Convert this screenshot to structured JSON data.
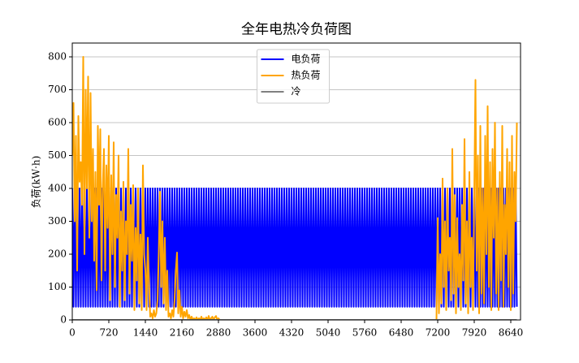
{
  "chart_data": {
    "type": "line",
    "title": "全年电热冷负荷图",
    "ylabel": "负荷(kW·h)",
    "x": [
      0,
      24,
      48,
      72,
      96,
      120,
      144,
      168,
      192,
      216,
      240,
      264,
      288,
      312,
      336,
      360,
      384,
      408,
      432,
      456,
      480,
      504,
      528,
      552,
      576,
      600,
      624,
      648,
      672,
      696,
      720,
      744,
      768,
      792,
      816,
      840,
      864,
      888,
      912,
      936,
      960,
      984,
      1008,
      1032,
      1056,
      1080,
      1104,
      1128,
      1152,
      1176,
      1200,
      1224,
      1248,
      1272,
      1296,
      1320,
      1344,
      1368,
      1392,
      1416,
      1440,
      1464,
      1488,
      1512,
      1536,
      1560,
      1584,
      1608,
      1632,
      1656,
      1680,
      1704,
      1728,
      1752,
      1776,
      1800,
      1824,
      1848,
      1872,
      1896,
      1920,
      1944,
      1968,
      1992,
      2016,
      2040,
      2064,
      2088,
      2112,
      2136,
      2160,
      2184,
      2208,
      2232,
      2256,
      2280,
      2304,
      2328,
      2352,
      2376,
      2400,
      2424,
      2448,
      2472,
      2496,
      2520,
      2544,
      2568,
      2592,
      2616,
      2640,
      2664,
      2688,
      2712,
      2736,
      2760,
      2784,
      2808,
      2832,
      2856,
      2880,
      2904,
      2928,
      2952,
      2976,
      3000,
      3024,
      3048,
      3072,
      3096,
      3120,
      3144,
      3168,
      3192,
      3216,
      3240,
      3264,
      3288,
      3312,
      3336,
      3360,
      3384,
      3408,
      3432,
      3456,
      3480,
      3504,
      3528,
      3552,
      3576,
      3600,
      3624,
      3648,
      3672,
      3696,
      3720,
      3744,
      3768,
      3792,
      3816,
      3840,
      3864,
      3888,
      3912,
      3936,
      3960,
      3984,
      4008,
      4032,
      4056,
      4080,
      4104,
      4128,
      4152,
      4176,
      4200,
      4224,
      4248,
      4272,
      4296,
      4320,
      4344,
      4368,
      4392,
      4416,
      4440,
      4464,
      4488,
      4512,
      4536,
      4560,
      4584,
      4608,
      4632,
      4656,
      4680,
      4704,
      4728,
      4752,
      4776,
      4800,
      4824,
      4848,
      4872,
      4896,
      4920,
      4944,
      4968,
      4992,
      5016,
      5040,
      5064,
      5088,
      5112,
      5136,
      5160,
      5184,
      5208,
      5232,
      5256,
      5280,
      5304,
      5328,
      5352,
      5376,
      5400,
      5424,
      5448,
      5472,
      5496,
      5520,
      5544,
      5568,
      5592,
      5616,
      5640,
      5664,
      5688,
      5712,
      5736,
      5760,
      5784,
      5808,
      5832,
      5856,
      5880,
      5904,
      5928,
      5952,
      5976,
      6000,
      6024,
      6048,
      6072,
      6096,
      6120,
      6144,
      6168,
      6192,
      6216,
      6240,
      6264,
      6288,
      6312,
      6336,
      6360,
      6384,
      6408,
      6432,
      6456,
      6480,
      6504,
      6528,
      6552,
      6576,
      6600,
      6624,
      6648,
      6672,
      6696,
      6720,
      6744,
      6768,
      6792,
      6816,
      6840,
      6864,
      6888,
      6912,
      6936,
      6960,
      6984,
      7008,
      7032,
      7056,
      7080,
      7104,
      7128,
      7152,
      7176,
      7200,
      7224,
      7248,
      7272,
      7296,
      7320,
      7344,
      7368,
      7392,
      7416,
      7440,
      7464,
      7488,
      7512,
      7536,
      7560,
      7584,
      7608,
      7632,
      7656,
      7680,
      7704,
      7728,
      7752,
      7776,
      7800,
      7824,
      7848,
      7872,
      7896,
      7920,
      7944,
      7968,
      7992,
      8016,
      8040,
      8064,
      8088,
      8112,
      8136,
      8160,
      8184,
      8208,
      8232,
      8256,
      8280,
      8304,
      8328,
      8352,
      8376,
      8400,
      8424,
      8448,
      8472,
      8496,
      8520,
      8544,
      8568,
      8592,
      8616,
      8640,
      8664,
      8688,
      8712,
      8736,
      8760
    ],
    "series": [
      {
        "name": "电负荷",
        "color": "#0000ff",
        "values": [
          400,
          40,
          400,
          40,
          400,
          40,
          400,
          40,
          400,
          40,
          400,
          40,
          400,
          40,
          400,
          40,
          400,
          40,
          400,
          40,
          400,
          40,
          400,
          40,
          400,
          40,
          400,
          40,
          400,
          40,
          400,
          40,
          400,
          40,
          400,
          40,
          400,
          40,
          400,
          40,
          400,
          40,
          400,
          40,
          400,
          40,
          400,
          40,
          400,
          40,
          400,
          40,
          400,
          40,
          400,
          40,
          400,
          40,
          400,
          40,
          400,
          40,
          400,
          40,
          400,
          40,
          400,
          40,
          400,
          40,
          400,
          40,
          400,
          40,
          400,
          40,
          400,
          40,
          400,
          40,
          400,
          40,
          400,
          40,
          400,
          40,
          400,
          40,
          400,
          40,
          400,
          40,
          400,
          40,
          400,
          40,
          400,
          40,
          400,
          40,
          400,
          40,
          400,
          40,
          400,
          40,
          400,
          40,
          400,
          40,
          400,
          40,
          400,
          40,
          400,
          40,
          400,
          40,
          400,
          40,
          400,
          40,
          400,
          40,
          400,
          40,
          400,
          40,
          400,
          40,
          400,
          40,
          400,
          40,
          400,
          40,
          400,
          40,
          400,
          40,
          400,
          40,
          400,
          40,
          400,
          40,
          400,
          40,
          400,
          40,
          400,
          40,
          400,
          40,
          400,
          40,
          400,
          40,
          400,
          40,
          400,
          40,
          400,
          40,
          400,
          40,
          400,
          40,
          400,
          40,
          400,
          40,
          400,
          40,
          400,
          40,
          400,
          40,
          400,
          40,
          400,
          40,
          400,
          40,
          400,
          40,
          400,
          40,
          400,
          40,
          400,
          40,
          400,
          40,
          400,
          40,
          400,
          40,
          400,
          40,
          400,
          40,
          400,
          40,
          400,
          40,
          400,
          40,
          400,
          40,
          400,
          40,
          400,
          40,
          400,
          40,
          400,
          40,
          400,
          40,
          400,
          40,
          400,
          40,
          400,
          40,
          400,
          40,
          400,
          40,
          400,
          40,
          400,
          40,
          400,
          40,
          400,
          40,
          400,
          40,
          400,
          40,
          400,
          40,
          400,
          40,
          400,
          40,
          400,
          40,
          400,
          40,
          400,
          40,
          400,
          40,
          400,
          40,
          400,
          40,
          400,
          40,
          400,
          40,
          400,
          40,
          400,
          40,
          400,
          40,
          400,
          40,
          400,
          40,
          400,
          40,
          400,
          40,
          400,
          40,
          400,
          40,
          400,
          40,
          400,
          40,
          400,
          40,
          400,
          40,
          400,
          40,
          400,
          40,
          400,
          40,
          400,
          40,
          400,
          40,
          400,
          40,
          400,
          40,
          400,
          40,
          400,
          40,
          400,
          40,
          400,
          40,
          400,
          40,
          400,
          40,
          400,
          40,
          400,
          40,
          400,
          40,
          400,
          40,
          400,
          40,
          400,
          40,
          400,
          40,
          400,
          40,
          400,
          40,
          400,
          40,
          400,
          40,
          400,
          40,
          400,
          40,
          400,
          40,
          400,
          40,
          400,
          40,
          400,
          40,
          400,
          40,
          400,
          40,
          400,
          40,
          400,
          40,
          400,
          40,
          400,
          40,
          400,
          40,
          400,
          40
        ]
      },
      {
        "name": "热负荷",
        "color": "#ffa500",
        "values": [
          500,
          660,
          300,
          560,
          150,
          620,
          420,
          480,
          350,
          800,
          200,
          700,
          400,
          740,
          250,
          690,
          300,
          520,
          180,
          450,
          90,
          590,
          350,
          580,
          120,
          400,
          520,
          150,
          470,
          280,
          560,
          60,
          440,
          200,
          540,
          100,
          380,
          250,
          500,
          40,
          330,
          150,
          420,
          60,
          300,
          200,
          520,
          80,
          350,
          180,
          410,
          30,
          280,
          120,
          400,
          50,
          260,
          30,
          470,
          200,
          150,
          30,
          250,
          100,
          10,
          20,
          5,
          30,
          10,
          20,
          60,
          200,
          390,
          100,
          300,
          50,
          250,
          30,
          150,
          10,
          20,
          5,
          30,
          10,
          60,
          150,
          205,
          20,
          90,
          10,
          40,
          5,
          25,
          10,
          30,
          5,
          15,
          0,
          10,
          0,
          5,
          0,
          8,
          0,
          5,
          0,
          10,
          0,
          5,
          0,
          8,
          0,
          12,
          0,
          5,
          10,
          0,
          8,
          12,
          0,
          5,
          0,
          0,
          0,
          0,
          0,
          0,
          0,
          0,
          0,
          0,
          0,
          0,
          0,
          0,
          0,
          0,
          0,
          0,
          0,
          0,
          0,
          0,
          0,
          0,
          0,
          0,
          0,
          0,
          0,
          0,
          0,
          0,
          0,
          0,
          0,
          0,
          0,
          0,
          0,
          0,
          0,
          0,
          0,
          0,
          0,
          0,
          0,
          0,
          0,
          0,
          0,
          0,
          0,
          0,
          0,
          0,
          0,
          0,
          0,
          0,
          0,
          0,
          0,
          0,
          0,
          0,
          0,
          0,
          0,
          0,
          0,
          0,
          0,
          0,
          0,
          0,
          0,
          0,
          0,
          0,
          0,
          0,
          0,
          0,
          0,
          0,
          0,
          0,
          0,
          0,
          0,
          0,
          0,
          0,
          0,
          0,
          0,
          0,
          0,
          0,
          0,
          0,
          0,
          0,
          0,
          0,
          0,
          0,
          0,
          0,
          0,
          0,
          0,
          0,
          0,
          0,
          0,
          0,
          0,
          0,
          0,
          0,
          0,
          0,
          0,
          0,
          0,
          0,
          0,
          0,
          0,
          0,
          0,
          0,
          0,
          0,
          0,
          0,
          0,
          0,
          0,
          0,
          0,
          0,
          0,
          0,
          0,
          0,
          0,
          0,
          0,
          0,
          0,
          0,
          0,
          0,
          0,
          0,
          0,
          0,
          0,
          0,
          0,
          0,
          0,
          0,
          0,
          0,
          0,
          0,
          0,
          0,
          0,
          0,
          0,
          0,
          0,
          0,
          0,
          310,
          20,
          200,
          50,
          430,
          100,
          300,
          30,
          400,
          150,
          250,
          60,
          520,
          80,
          380,
          20,
          310,
          100,
          200,
          30,
          350,
          120,
          550,
          50,
          300,
          20,
          450,
          100,
          250,
          30,
          380,
          730,
          150,
          500,
          20,
          590,
          80,
          400,
          50,
          560,
          200,
          650,
          100,
          480,
          30,
          520,
          250,
          600,
          80,
          400,
          30,
          450,
          120,
          590,
          40,
          350,
          200,
          520,
          100,
          480,
          30,
          560,
          80,
          450,
          300,
          600
        ]
      },
      {
        "name": "冷",
        "color": "#808080",
        "x": [
          0,
          8760
        ],
        "values": [
          0,
          0
        ]
      }
    ],
    "xlim": [
      0,
      8832
    ],
    "ylim": [
      0,
      842
    ],
    "xticks": [
      0,
      720,
      1440,
      2160,
      2880,
      3600,
      4320,
      5040,
      5760,
      6480,
      7200,
      7920,
      8640
    ],
    "yticks": [
      0,
      100,
      200,
      300,
      400,
      500,
      600,
      700,
      800
    ],
    "grid": "y",
    "legend": "upper center"
  }
}
